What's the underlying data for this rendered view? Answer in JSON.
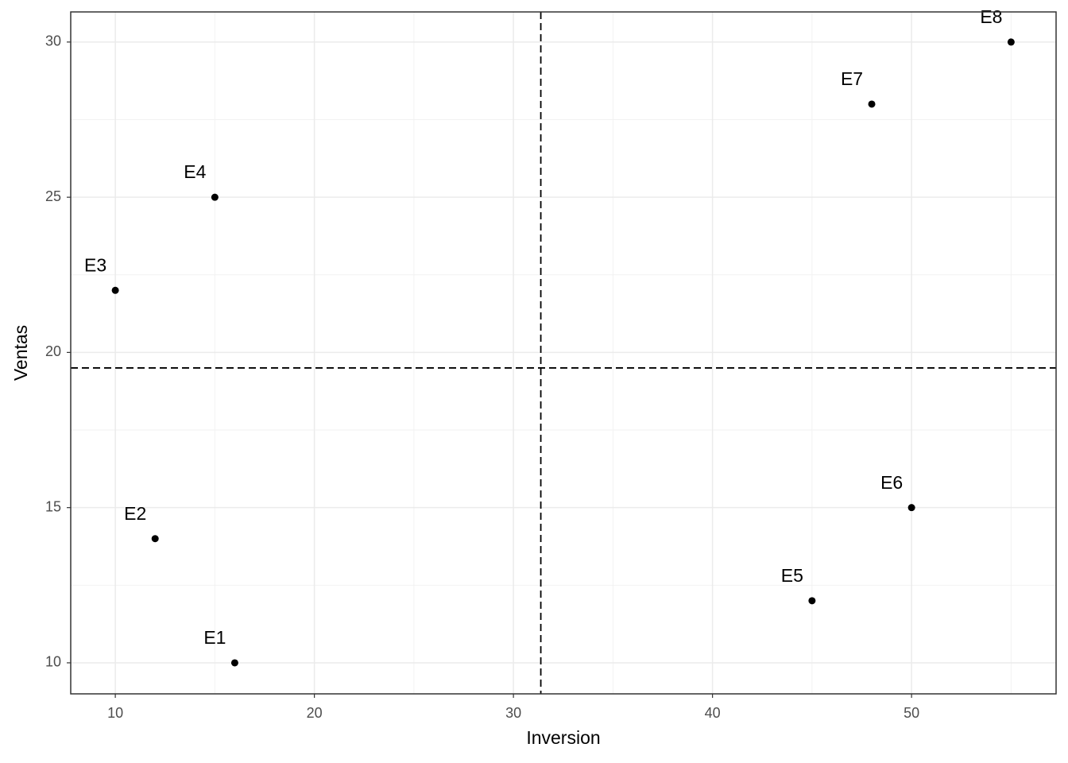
{
  "chart_data": {
    "type": "scatter",
    "x_label": "Inversion",
    "y_label": "Ventas",
    "x": [
      16,
      12,
      10,
      15,
      45,
      50,
      48,
      55
    ],
    "values": [
      10,
      14,
      22,
      25,
      12,
      15,
      28,
      30
    ],
    "labels": [
      "E1",
      "E2",
      "E3",
      "E4",
      "E5",
      "E6",
      "E7",
      "E8"
    ],
    "color": "#000000",
    "xlim": [
      7.76,
      57.26
    ],
    "ylim": [
      9.0,
      30.97
    ],
    "xticks": [
      10,
      20,
      30,
      40,
      50
    ],
    "yticks": [
      10,
      15,
      20,
      25,
      30
    ],
    "x_minor_ticks": [
      15,
      25,
      35,
      45,
      55
    ],
    "y_minor_ticks": [
      12.5,
      17.5,
      22.5,
      27.5
    ],
    "grid": true,
    "vline": 31.375,
    "hline": 19.5
  }
}
